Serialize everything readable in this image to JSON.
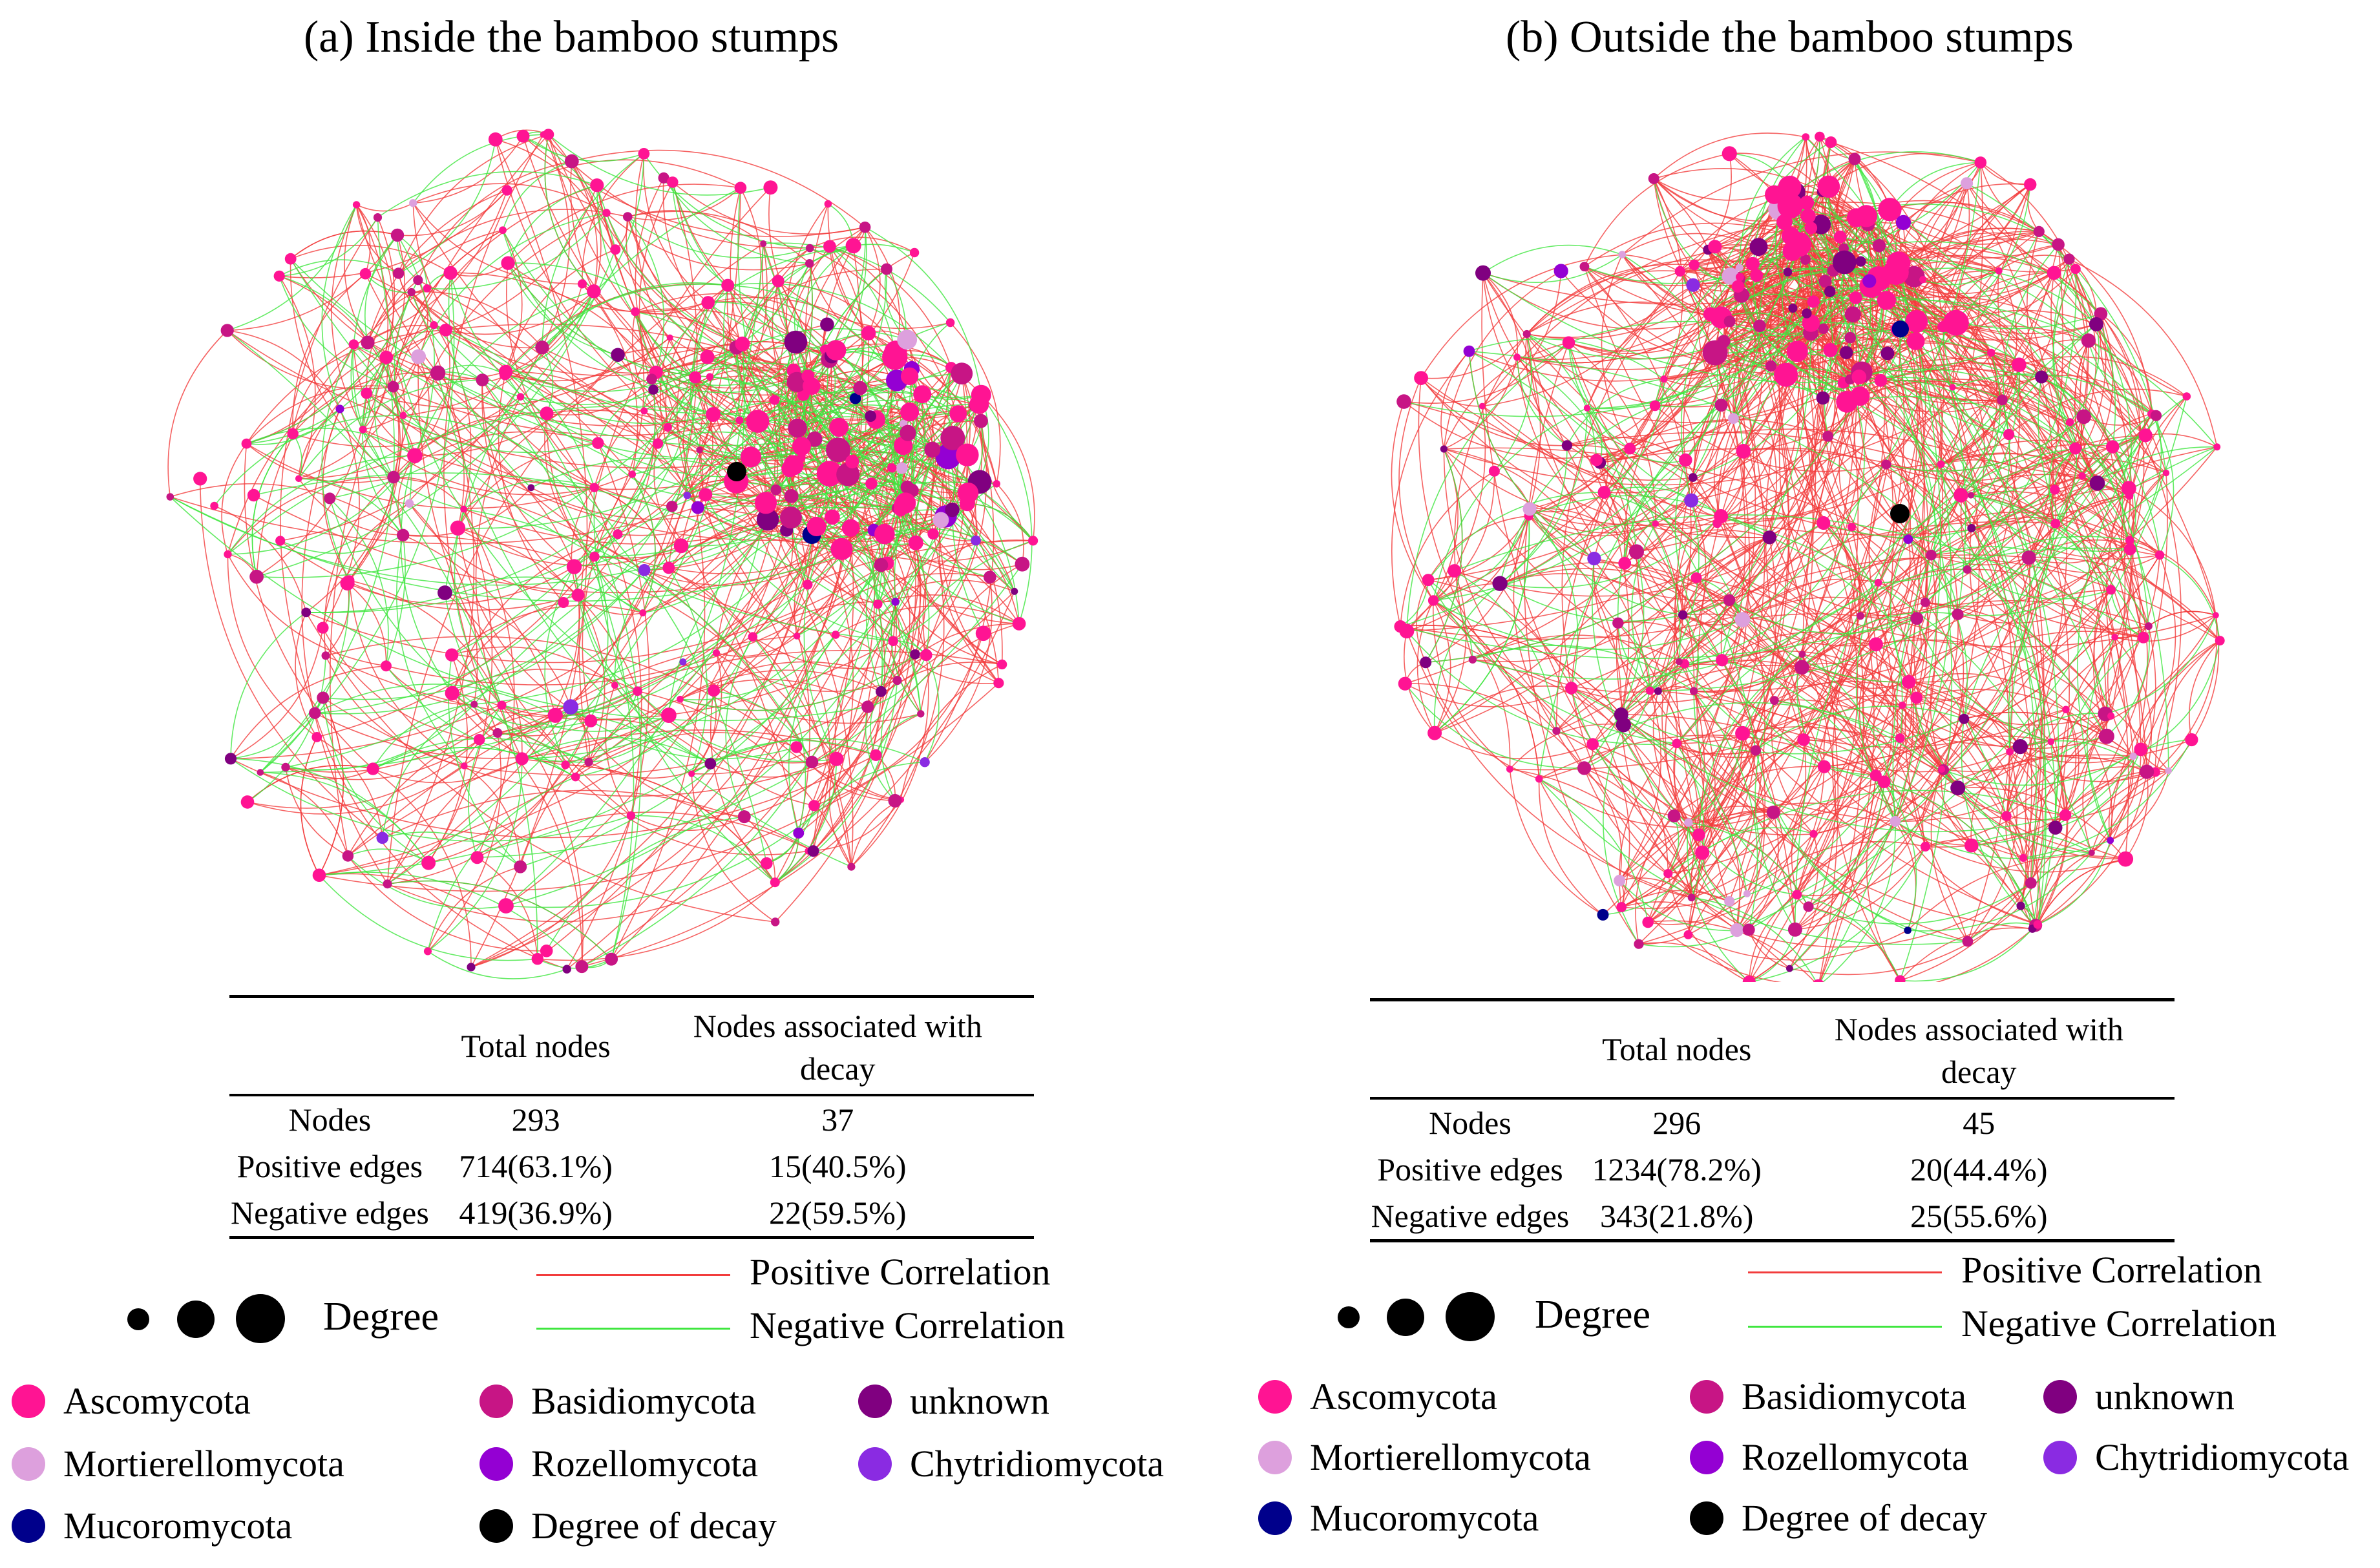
{
  "panels": [
    {
      "id": "a",
      "title": "(a) Inside the bamboo stumps",
      "network": {
        "seed": 17,
        "node_count": 293,
        "positive_edges": 714,
        "negative_edges": 419,
        "cluster_note": "dense pink cluster upper-right"
      },
      "table": {
        "headers": [
          "",
          "Total nodes",
          "Nodes associated with decay"
        ],
        "rows": [
          [
            "Nodes",
            "293",
            "37"
          ],
          [
            "Positive edges",
            "714(63.1%)",
            "15(40.5%)"
          ],
          [
            "Negative edges",
            "419(36.9%)",
            "22(59.5%)"
          ]
        ]
      }
    },
    {
      "id": "b",
      "title": "(b) Outside the bamboo stumps",
      "network": {
        "seed": 91,
        "node_count": 296,
        "positive_edges": 1234,
        "negative_edges": 343,
        "cluster_note": "dense pink cluster top"
      },
      "table": {
        "headers": [
          "",
          "Total nodes",
          "Nodes associated with decay"
        ],
        "rows": [
          [
            "Nodes",
            "296",
            "45"
          ],
          [
            "Positive edges",
            "1234(78.2%)",
            "20(44.4%)"
          ],
          [
            "Negative edges",
            "343(21.8%)",
            "25(55.6%)"
          ]
        ]
      }
    }
  ],
  "correlation_legend": {
    "positive": {
      "label": "Positive Correlation",
      "color": "#f23c3c"
    },
    "negative": {
      "label": "Negative Correlation",
      "color": "#3ee63e"
    }
  },
  "degree_label": "Degree",
  "phyla": [
    {
      "label": "Ascomycota",
      "color": "#ff1493"
    },
    {
      "label": "Basidiomycota",
      "color": "#c71585"
    },
    {
      "label": "unknown",
      "color": "#800080"
    },
    {
      "label": "Mortierellomycota",
      "color": "#dda0dd"
    },
    {
      "label": "Rozellomycota",
      "color": "#9400d3"
    },
    {
      "label": "Chytridiomycota",
      "color": "#8a2be2"
    },
    {
      "label": "Mucoromycota",
      "color": "#00008b"
    },
    {
      "label": "Degree of decay",
      "color": "#000000"
    }
  ]
}
